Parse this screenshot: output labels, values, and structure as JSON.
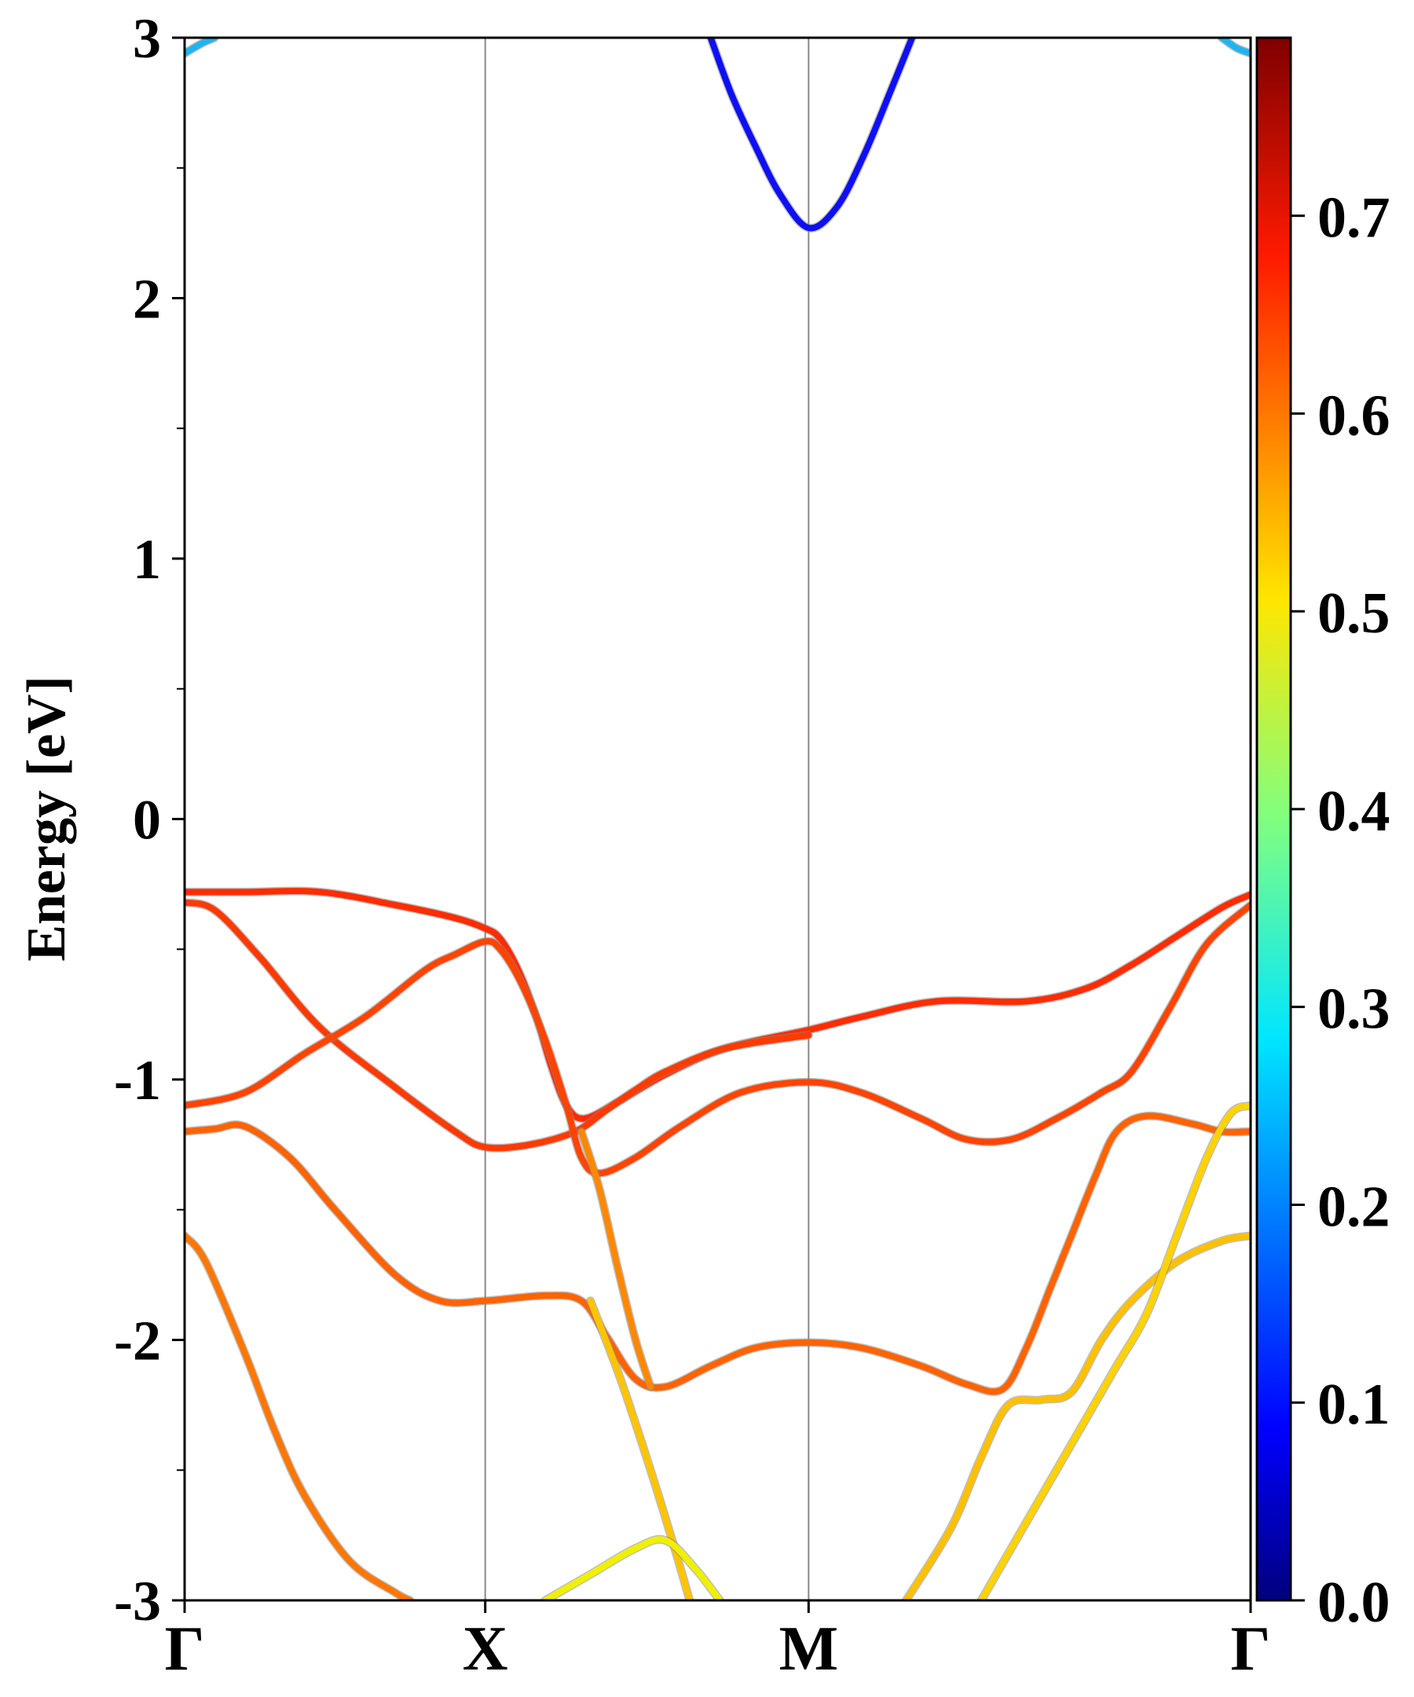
{
  "chart_data": {
    "type": "line",
    "title": "",
    "xlabel": "",
    "ylabel": "Energy [eV]",
    "ylim": [
      -3,
      3
    ],
    "x_ticks": [
      {
        "label": "Γ",
        "pos": 0.0
      },
      {
        "label": "X",
        "pos": 1.0
      },
      {
        "label": "M",
        "pos": 2.0757
      },
      {
        "label": "Γ",
        "pos": 3.546
      }
    ],
    "y_ticks": [
      "3",
      "2",
      "1",
      "0",
      "-1",
      "-2",
      "-3"
    ],
    "y_tick_values": [
      3,
      2,
      1,
      0,
      -1,
      -2,
      -3
    ],
    "y_minor_step": 0.5,
    "colorbar": {
      "colormap": "jet",
      "range": [
        0.0,
        0.79
      ],
      "ticks": [
        {
          "value": 0.0,
          "label": "0.0"
        },
        {
          "value": 0.1,
          "label": "0.1"
        },
        {
          "value": 0.2,
          "label": "0.2"
        },
        {
          "value": 0.3,
          "label": "0.3"
        },
        {
          "value": 0.4,
          "label": "0.4"
        },
        {
          "value": 0.5,
          "label": "0.5"
        },
        {
          "value": 0.6,
          "label": "0.6"
        },
        {
          "value": 0.7,
          "label": "0.7"
        }
      ]
    },
    "series": [
      {
        "color": "#0f0ff4",
        "points": [
          [
            1.75,
            3.0
          ],
          [
            1.82,
            2.78
          ],
          [
            1.9,
            2.58
          ],
          [
            1.98,
            2.4
          ],
          [
            2.0757,
            2.27
          ],
          [
            2.17,
            2.35
          ],
          [
            2.26,
            2.55
          ],
          [
            2.35,
            2.8
          ],
          [
            2.42,
            3.0
          ]
        ]
      },
      {
        "color": "#ff2c00",
        "points": [
          [
            0.0,
            -0.28
          ],
          [
            0.2,
            -0.28
          ],
          [
            0.45,
            -0.28
          ],
          [
            0.7,
            -0.33
          ],
          [
            0.9,
            -0.38
          ],
          [
            1.0,
            -0.42
          ],
          [
            1.05,
            -0.46
          ],
          [
            1.11,
            -0.58
          ],
          [
            1.17,
            -0.76
          ],
          [
            1.22,
            -0.95
          ],
          [
            1.27,
            -1.1
          ],
          [
            1.33,
            -1.15
          ],
          [
            1.45,
            -1.08
          ],
          [
            1.6,
            -0.98
          ],
          [
            1.8,
            -0.88
          ],
          [
            2.0757,
            -0.81
          ],
          [
            2.25,
            -0.76
          ],
          [
            2.5,
            -0.7
          ],
          [
            2.8,
            -0.7
          ],
          [
            3.0,
            -0.65
          ],
          [
            3.15,
            -0.56
          ],
          [
            3.3,
            -0.45
          ],
          [
            3.45,
            -0.34
          ],
          [
            3.546,
            -0.29
          ]
        ]
      },
      {
        "color": "#ff3a00",
        "points": [
          [
            0.0,
            -0.32
          ],
          [
            0.1,
            -0.35
          ],
          [
            0.25,
            -0.53
          ],
          [
            0.45,
            -0.8
          ],
          [
            0.7,
            -1.03
          ],
          [
            0.9,
            -1.2
          ],
          [
            1.0,
            -1.26
          ],
          [
            1.15,
            -1.25
          ],
          [
            1.3,
            -1.2
          ],
          [
            1.4,
            -1.12
          ],
          [
            1.5,
            -1.04
          ],
          [
            1.6,
            -0.97
          ],
          [
            1.8,
            -0.88
          ],
          [
            2.0757,
            -0.83
          ]
        ]
      },
      {
        "color": "#ff4400",
        "points": [
          [
            0.0,
            -1.1
          ],
          [
            0.2,
            -1.05
          ],
          [
            0.4,
            -0.9
          ],
          [
            0.6,
            -0.76
          ],
          [
            0.8,
            -0.58
          ],
          [
            0.9,
            -0.52
          ],
          [
            1.0,
            -0.47
          ],
          [
            1.05,
            -0.5
          ],
          [
            1.12,
            -0.63
          ],
          [
            1.2,
            -0.85
          ],
          [
            1.27,
            -1.1
          ],
          [
            1.32,
            -1.3
          ],
          [
            1.38,
            -1.36
          ],
          [
            1.5,
            -1.3
          ],
          [
            1.65,
            -1.18
          ],
          [
            1.85,
            -1.05
          ],
          [
            2.0757,
            -1.01
          ],
          [
            2.25,
            -1.05
          ],
          [
            2.45,
            -1.15
          ],
          [
            2.6,
            -1.23
          ],
          [
            2.75,
            -1.23
          ],
          [
            2.9,
            -1.15
          ],
          [
            3.05,
            -1.05
          ],
          [
            3.15,
            -0.97
          ],
          [
            3.28,
            -0.72
          ],
          [
            3.4,
            -0.48
          ],
          [
            3.546,
            -0.33
          ]
        ]
      },
      {
        "color": "#ff6300",
        "points": [
          [
            0.0,
            -1.2
          ],
          [
            0.1,
            -1.19
          ],
          [
            0.2,
            -1.18
          ],
          [
            0.35,
            -1.3
          ],
          [
            0.5,
            -1.5
          ],
          [
            0.7,
            -1.75
          ],
          [
            0.85,
            -1.85
          ],
          [
            1.0,
            -1.85
          ],
          [
            1.2,
            -1.83
          ],
          [
            1.32,
            -1.85
          ],
          [
            1.4,
            -1.98
          ],
          [
            1.5,
            -2.15
          ],
          [
            1.6,
            -2.18
          ],
          [
            1.75,
            -2.1
          ],
          [
            1.9,
            -2.03
          ],
          [
            2.0757,
            -2.01
          ],
          [
            2.25,
            -2.03
          ],
          [
            2.45,
            -2.1
          ],
          [
            2.6,
            -2.17
          ],
          [
            2.72,
            -2.19
          ],
          [
            2.8,
            -2.03
          ],
          [
            2.88,
            -1.8
          ],
          [
            2.95,
            -1.6
          ],
          [
            3.03,
            -1.37
          ],
          [
            3.1,
            -1.2
          ],
          [
            3.2,
            -1.14
          ],
          [
            3.35,
            -1.17
          ],
          [
            3.45,
            -1.2
          ],
          [
            3.546,
            -1.2
          ]
        ]
      },
      {
        "color": "#ff7700",
        "points": [
          [
            0.0,
            -1.6
          ],
          [
            0.07,
            -1.7
          ],
          [
            0.2,
            -2.05
          ],
          [
            0.3,
            -2.35
          ],
          [
            0.4,
            -2.6
          ],
          [
            0.55,
            -2.85
          ],
          [
            0.7,
            -2.97
          ],
          [
            0.75,
            -3.0
          ]
        ]
      },
      {
        "color": "#ff8800",
        "points": [
          [
            1.32,
            -1.2
          ],
          [
            1.38,
            -1.42
          ],
          [
            1.44,
            -1.72
          ],
          [
            1.5,
            -2.0
          ],
          [
            1.55,
            -2.18
          ]
        ]
      },
      {
        "color": "#ffc400",
        "points": [
          [
            1.35,
            -1.85
          ],
          [
            1.45,
            -2.15
          ],
          [
            1.55,
            -2.5
          ],
          [
            1.63,
            -2.8
          ],
          [
            1.68,
            -3.0
          ]
        ]
      },
      {
        "color": "#f0f000",
        "points": [
          [
            1.2,
            -3.0
          ],
          [
            1.35,
            -2.9
          ],
          [
            1.5,
            -2.8
          ],
          [
            1.6,
            -2.77
          ],
          [
            1.7,
            -2.88
          ],
          [
            1.78,
            -3.0
          ]
        ]
      },
      {
        "color": "#ffc000",
        "points": [
          [
            2.4,
            -3.0
          ],
          [
            2.55,
            -2.72
          ],
          [
            2.65,
            -2.45
          ],
          [
            2.74,
            -2.25
          ],
          [
            2.85,
            -2.23
          ],
          [
            2.95,
            -2.2
          ],
          [
            3.05,
            -2.0
          ],
          [
            3.15,
            -1.85
          ],
          [
            3.3,
            -1.7
          ],
          [
            3.45,
            -1.62
          ],
          [
            3.546,
            -1.6
          ]
        ]
      },
      {
        "color": "#ffd200",
        "points": [
          [
            2.65,
            -3.0
          ],
          [
            2.8,
            -2.7
          ],
          [
            2.9,
            -2.5
          ],
          [
            3.0,
            -2.3
          ],
          [
            3.1,
            -2.1
          ],
          [
            3.2,
            -1.9
          ],
          [
            3.3,
            -1.6
          ],
          [
            3.4,
            -1.3
          ],
          [
            3.48,
            -1.13
          ],
          [
            3.546,
            -1.1
          ]
        ]
      },
      {
        "color": "#1fb4f0",
        "points": [
          [
            0.0,
            2.94
          ],
          [
            0.06,
            2.98
          ],
          [
            0.1,
            3.0
          ]
        ]
      },
      {
        "color": "#1fb4f0",
        "points": [
          [
            3.45,
            3.0
          ],
          [
            3.5,
            2.96
          ],
          [
            3.546,
            2.94
          ]
        ]
      }
    ]
  }
}
